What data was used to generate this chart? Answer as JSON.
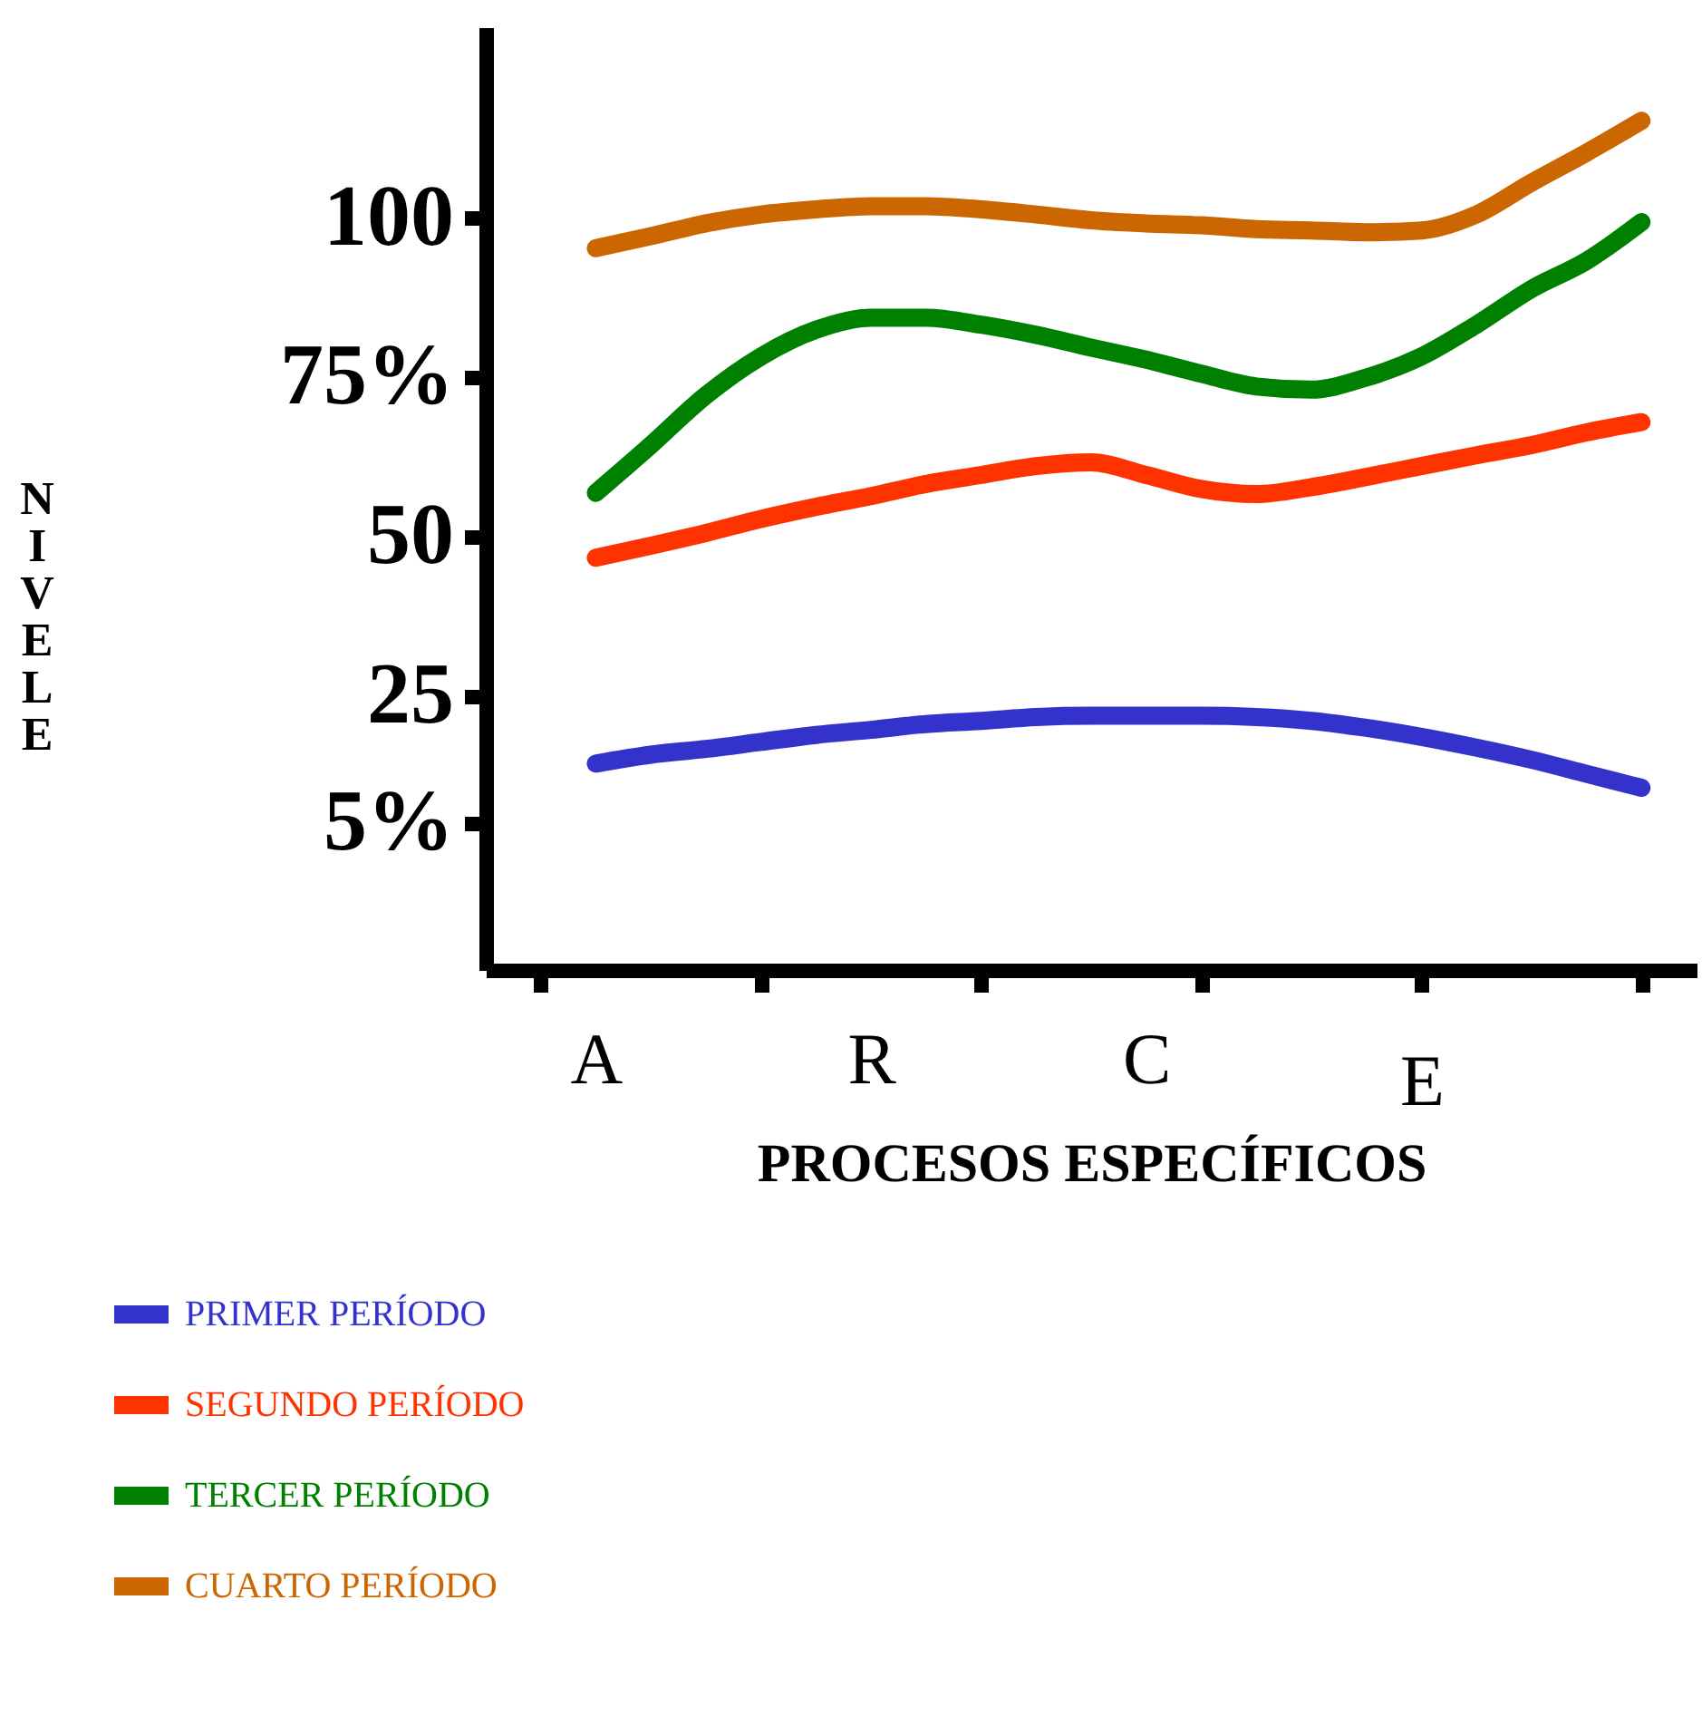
{
  "chart_data": {
    "type": "line",
    "xlabel": "PROCESOS  ESPECÍFICOS",
    "ylabel": "NIVELE",
    "categories": [
      null,
      "A",
      null,
      null,
      null,
      null,
      "R",
      null,
      null,
      null,
      null,
      "C",
      null,
      null,
      null,
      null,
      "E",
      null,
      null,
      null,
      null
    ],
    "ylim": [
      -18,
      130
    ],
    "yticks": [
      {
        "value": 5,
        "label": "5%"
      },
      25,
      50,
      {
        "value": 75,
        "label": "75%"
      },
      100
    ],
    "grid": false,
    "legend": "bottom",
    "line_style": "solid",
    "series": [
      {
        "name": "PRIMER PERÍODO",
        "color": "#3333cc",
        "values": [
          null,
          14.4,
          15.8,
          16.7,
          17.8,
          18.9,
          19.7,
          20.6,
          21.1,
          21.7,
          21.9,
          21.9,
          21.9,
          21.7,
          21.1,
          20,
          18.6,
          16.9,
          15,
          12.8,
          10.6
        ]
      },
      {
        "name": "SEGUNDO  PERÍODO",
        "color": "#ff3300",
        "values": [
          null,
          46.7,
          48.6,
          50.6,
          52.8,
          54.7,
          56.4,
          58.3,
          59.7,
          61.1,
          61.7,
          59.7,
          57.5,
          56.7,
          57.8,
          59.4,
          61.1,
          62.8,
          64.4,
          66.4,
          68
        ]
      },
      {
        "name": "TERCER PERÍODO",
        "color": "#008000",
        "values": [
          null,
          56.9,
          64.4,
          72.2,
          78.3,
          82.5,
          84.4,
          84.4,
          83.3,
          81.7,
          79.7,
          77.8,
          75.6,
          73.6,
          73.1,
          75,
          78.3,
          83.3,
          88.9,
          93.3,
          99.4
        ]
      },
      {
        "name": "CUARTO PERÍODO",
        "color": "#cc6600",
        "values": [
          null,
          95.3,
          97.2,
          99.2,
          100.6,
          101.4,
          101.9,
          101.9,
          101.4,
          100.6,
          99.7,
          99.2,
          98.9,
          98.3,
          98.1,
          97.8,
          98.1,
          100.6,
          105.6,
          110.3,
          115.3
        ]
      }
    ]
  }
}
